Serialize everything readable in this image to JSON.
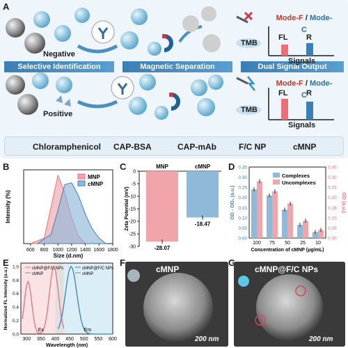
{
  "panels": {
    "a": "A",
    "b": "B",
    "c": "C",
    "d": "D",
    "e": "E",
    "f": "F",
    "g": "G"
  },
  "workflow": {
    "negative": "Negative",
    "positive": "Positive",
    "tmb_top": "TMB",
    "tmb_bottom": "TMB",
    "stages": [
      "Selective Identification",
      "Magnetic Separation",
      "Dual Signal Output"
    ],
    "mode_f": "Mode-F",
    "mode_sep": " / ",
    "mode_c": "Mode-C",
    "fl": "FL",
    "r": "R",
    "signals": "Signals"
  },
  "legend": {
    "items": [
      "Chloramphenicol",
      "CAP-BSA",
      "CAP-mAb",
      "F/C NP",
      "cMNP"
    ]
  },
  "colors": {
    "red": "#e8707a",
    "blue": "#3c7fb5",
    "stage": "#3b7fb6",
    "pink_fill": "#f0a5aa",
    "blue_fill": "#8fb9d9"
  },
  "chart_data": [
    {
      "panel": "B",
      "type": "area",
      "xlabel": "Size (d.nm)",
      "ylabel": "Intensity (%)",
      "xticks": [
        "600",
        "800",
        "1000",
        "1200",
        "1400",
        "1600",
        "1800"
      ],
      "xlim": [
        500,
        1800
      ],
      "series": [
        {
          "name": "MNP",
          "x": [
            600,
            800,
            900,
            1000,
            1100,
            1200,
            1300,
            1400
          ],
          "y": [
            0,
            3,
            20,
            37,
            28,
            14,
            4,
            0
          ]
        },
        {
          "name": "cMNP",
          "x": [
            700,
            900,
            1000,
            1100,
            1200,
            1300,
            1400,
            1500,
            1600,
            1700
          ],
          "y": [
            0,
            5,
            18,
            32,
            33,
            26,
            16,
            8,
            3,
            0
          ]
        }
      ]
    },
    {
      "panel": "C",
      "type": "bar",
      "ylabel": "Zeta Potential (mV)",
      "categories": [
        "MNP",
        "cMNP"
      ],
      "values": [
        -28.07,
        -18.47
      ],
      "value_labels": [
        "-28.07",
        "-18.47"
      ],
      "yticks": [
        "0",
        "-5",
        "-10",
        "-15",
        "-20",
        "-25",
        "-30"
      ],
      "ylim": [
        -30,
        0
      ]
    },
    {
      "panel": "D",
      "type": "bar",
      "xlabel": "Concentration of cMNP (μg/mL)",
      "ylabel_left": "OD - OD₀ (a.u.)",
      "ylabel_right": "OD (a.u.)",
      "categories": [
        "100",
        "75",
        "50",
        "25",
        "10"
      ],
      "series": [
        {
          "name": "Complexes",
          "values": [
            0.24,
            0.21,
            0.14,
            0.065,
            0.03
          ]
        },
        {
          "name": "Uncomplexes",
          "values": [
            0.28,
            0.23,
            0.17,
            0.085,
            0.04
          ]
        }
      ],
      "yticks_left": [
        "0.00",
        "0.05",
        "0.10",
        "0.15",
        "0.20",
        "0.25",
        "0.30",
        "0.35"
      ],
      "yticks_right": [
        "0.00",
        "0.05",
        "0.10",
        "0.15",
        "0.20",
        "0.25",
        "0.30",
        "0.35"
      ],
      "ylim": [
        0,
        0.35
      ]
    },
    {
      "panel": "E",
      "type": "line",
      "xlabel": "Wavelength (nm)",
      "ylabel": "Normalized FL Intensity (a.u.)",
      "xticks": [
        "300",
        "350",
        "400",
        "450",
        "500",
        "550",
        "600"
      ],
      "yticks": [
        "0.0",
        "0.2",
        "0.4",
        "0.6",
        "0.8",
        "1.0"
      ],
      "xlim": [
        280,
        600
      ],
      "ylim": [
        0,
        1.05
      ],
      "legend_left": [
        "cMNP@F/C NPs",
        "cMNP"
      ],
      "legend_right": [
        "cMNP@F/C NPs",
        "cMNP"
      ],
      "band_labels": [
        "Ex",
        "Em"
      ]
    }
  ],
  "micrographs": {
    "f_title": "cMNP",
    "g_title": "cMNP@F/C NPs",
    "scale_f": "200 nm",
    "scale_g": "200 nm"
  }
}
